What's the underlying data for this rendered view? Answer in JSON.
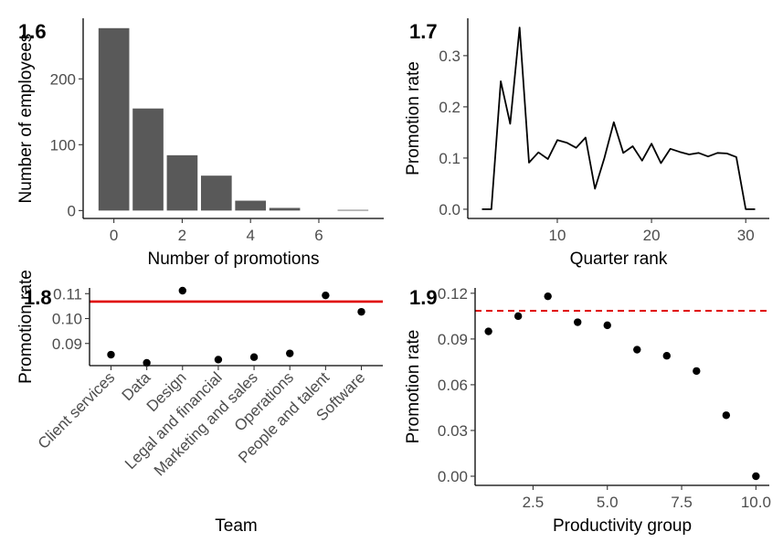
{
  "chart_data": [
    {
      "type": "bar",
      "panel_tag": "1.6",
      "xlabel": "Number of promotions",
      "ylabel": "Number of employees",
      "x": [
        0,
        1,
        2,
        3,
        4,
        5,
        7
      ],
      "values": [
        277,
        155,
        84,
        53,
        15,
        4,
        1
      ],
      "xlim": [
        -0.9,
        7.9
      ],
      "ylim": [
        -12,
        292
      ],
      "x_ticks": [
        0,
        2,
        4,
        6
      ],
      "y_ticks": [
        0,
        100,
        200
      ],
      "color": "#595959",
      "grid": false
    },
    {
      "type": "line",
      "panel_tag": "1.7",
      "xlabel": "Quarter rank",
      "ylabel": "Promotion rate",
      "x": [
        2,
        3,
        4,
        5,
        6,
        7,
        8,
        9,
        10,
        11,
        12,
        13,
        14,
        15,
        16,
        17,
        18,
        19,
        20,
        21,
        22,
        23,
        24,
        25,
        26,
        27,
        28,
        29,
        30,
        31
      ],
      "values": [
        0.0,
        0.0,
        0.25,
        0.167,
        0.355,
        0.091,
        0.111,
        0.098,
        0.135,
        0.13,
        0.12,
        0.14,
        0.04,
        0.1,
        0.17,
        0.11,
        0.123,
        0.095,
        0.128,
        0.09,
        0.118,
        0.112,
        0.107,
        0.11,
        0.103,
        0.11,
        0.109,
        0.102,
        0.0,
        0.0
      ],
      "xlim": [
        0.5,
        32.5
      ],
      "ylim": [
        -0.018,
        0.373
      ],
      "x_ticks": [
        10,
        20,
        30
      ],
      "y_ticks": [
        0.0,
        0.1,
        0.2,
        0.3
      ],
      "y_tick_labels": [
        "0.0",
        "0.1",
        "0.2",
        "0.3"
      ],
      "color": "#000000",
      "grid": false
    },
    {
      "type": "scatter",
      "panel_tag": "1.8",
      "xlabel": "Team",
      "ylabel": "Promotion rate",
      "categories": [
        "Client services",
        "Data",
        "Design",
        "Legal and financial",
        "Marketing and sales",
        "Operations",
        "People and talent",
        "Software"
      ],
      "values": [
        0.0855,
        0.0822,
        0.1112,
        0.0835,
        0.0845,
        0.086,
        0.1093,
        0.1027
      ],
      "reference_line": {
        "y": 0.1068,
        "color": "#e00000",
        "style": "solid"
      },
      "ylim": [
        0.0811,
        0.1123
      ],
      "y_ticks": [
        0.09,
        0.1,
        0.11
      ],
      "y_tick_labels": [
        "0.09",
        "0.10",
        "0.11"
      ],
      "color": "#000000",
      "grid": false
    },
    {
      "type": "scatter",
      "panel_tag": "1.9",
      "xlabel": "Productivity group",
      "ylabel": "Promotion rate",
      "x": [
        1,
        2,
        3,
        4,
        5,
        6,
        7,
        8,
        9,
        10
      ],
      "values": [
        0.095,
        0.105,
        0.118,
        0.101,
        0.099,
        0.083,
        0.079,
        0.069,
        0.04,
        0.0
      ],
      "reference_line": {
        "y": 0.1085,
        "color": "#e00000",
        "style": "dashed"
      },
      "xlim": [
        0.55,
        10.45
      ],
      "ylim": [
        -0.006,
        0.1235
      ],
      "x_ticks": [
        2.5,
        5.0,
        7.5,
        10.0
      ],
      "x_tick_labels": [
        "2.5",
        "5.0",
        "7.5",
        "10.0"
      ],
      "y_ticks": [
        0.0,
        0.03,
        0.06,
        0.09,
        0.12
      ],
      "y_tick_labels": [
        "0.00",
        "0.03",
        "0.06",
        "0.09",
        "0.12"
      ],
      "color": "#000000",
      "grid": false
    }
  ]
}
